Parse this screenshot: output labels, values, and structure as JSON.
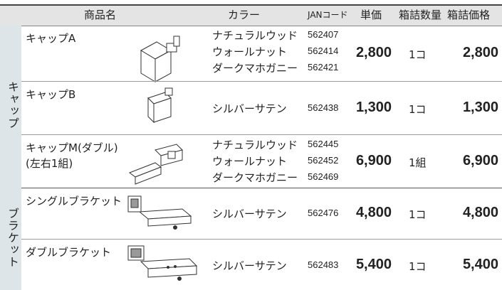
{
  "header": {
    "name": "商品名",
    "color": "カラー",
    "jan": "JANコード",
    "unit_price": "単価",
    "box_qty": "箱詰数量",
    "box_price": "箱詰価格"
  },
  "groups": [
    {
      "label": "キャップ",
      "products": [
        {
          "name": [
            "キャップA"
          ],
          "variants": [
            {
              "color": "ナチュラルウッド",
              "jan": "562407"
            },
            {
              "color": "ウォールナット",
              "jan": "562414"
            },
            {
              "color": "ダークマホガニー",
              "jan": "562421"
            }
          ],
          "unit_price": "2,800",
          "box_qty": "1コ",
          "box_price": "2,800"
        },
        {
          "name": [
            "キャップB"
          ],
          "variants": [
            {
              "color": "シルバーサテン",
              "jan": "562438"
            }
          ],
          "unit_price": "1,300",
          "box_qty": "1コ",
          "box_price": "1,300"
        },
        {
          "name": [
            "キャップM(ダブル)",
            "(左右1組)"
          ],
          "variants": [
            {
              "color": "ナチュラルウッド",
              "jan": "562445"
            },
            {
              "color": "ウォールナット",
              "jan": "562452"
            },
            {
              "color": "ダークマホガニー",
              "jan": "562469"
            }
          ],
          "unit_price": "6,900",
          "box_qty": "1組",
          "box_price": "6,900"
        }
      ]
    },
    {
      "label": "ブラケット",
      "products": [
        {
          "name": [
            "シングルブラケット"
          ],
          "variants": [
            {
              "color": "シルバーサテン",
              "jan": "562476"
            }
          ],
          "unit_price": "4,800",
          "box_qty": "1コ",
          "box_price": "4,800"
        },
        {
          "name": [
            "ダブルブラケット"
          ],
          "variants": [
            {
              "color": "シルバーサテン",
              "jan": "562483"
            }
          ],
          "unit_price": "5,400",
          "box_qty": "1コ",
          "box_price": "5,400"
        }
      ]
    }
  ]
}
